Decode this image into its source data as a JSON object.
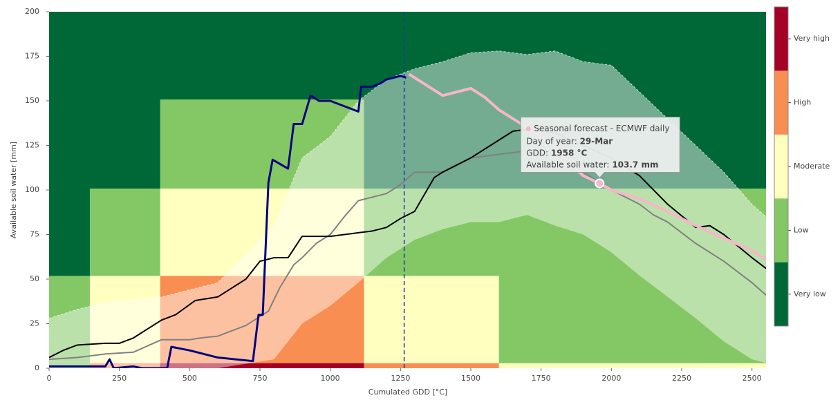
{
  "chart_data": {
    "type": "line",
    "xlabel": "Cumulated GDD [°C]",
    "ylabel": "Available soil water [mm]",
    "xlim": [
      0,
      2550
    ],
    "ylim": [
      0,
      200
    ],
    "xticks": [
      0,
      250,
      500,
      750,
      1000,
      1250,
      1500,
      1750,
      2000,
      2250,
      2500
    ],
    "yticks": [
      0,
      25,
      50,
      75,
      100,
      125,
      150,
      175,
      200
    ],
    "colorbar": {
      "levels": [
        "Very low",
        "Low",
        "Moderate",
        "High",
        "Very high"
      ],
      "colors": [
        "#006837",
        "#84c865",
        "#ffffbf",
        "#f98e52",
        "#a50026"
      ]
    },
    "heatmap": {
      "xbins": [
        0,
        145,
        395,
        1120,
        1600,
        2550
      ],
      "ybins": [
        0,
        3,
        52,
        101,
        151,
        200
      ],
      "z": [
        [
          1,
          3,
          4,
          3,
          2
        ],
        [
          1,
          2,
          3,
          2,
          1
        ],
        [
          0,
          1,
          2,
          1,
          1
        ],
        [
          0,
          0,
          1,
          0,
          0
        ],
        [
          0,
          0,
          0,
          0,
          0
        ]
      ]
    },
    "band": {
      "x": [
        0,
        100,
        200,
        400,
        600,
        800,
        900,
        1000,
        1100,
        1200,
        1300,
        1400,
        1500,
        1600,
        1700,
        1800,
        1900,
        2000,
        2100,
        2200,
        2300,
        2400,
        2500,
        2550
      ],
      "upper": [
        28,
        33,
        37,
        40,
        48,
        80,
        118,
        130,
        150,
        162,
        168,
        172,
        177,
        178,
        176,
        178,
        172,
        170,
        155,
        140,
        125,
        110,
        92,
        85
      ],
      "lower": [
        0,
        0,
        0,
        0,
        0,
        5,
        25,
        35,
        48,
        62,
        72,
        78,
        82,
        82,
        86,
        80,
        75,
        65,
        52,
        40,
        28,
        15,
        5,
        3
      ]
    },
    "vline": 1263,
    "series": [
      {
        "color": "#808080",
        "width": 2,
        "x": [
          0,
          100,
          200,
          300,
          400,
          500,
          540,
          600,
          700,
          780,
          820,
          870,
          900,
          950,
          1000,
          1050,
          1100,
          1200,
          1250,
          1300,
          1400,
          1500,
          1600,
          1700,
          1750,
          1800,
          1900,
          2000,
          2100,
          2150,
          2200,
          2300,
          2400,
          2500,
          2550
        ],
        "values": [
          5,
          6,
          8,
          9,
          16,
          16,
          17,
          18,
          24,
          32,
          45,
          58,
          62,
          70,
          75,
          85,
          94,
          98,
          103,
          110,
          110,
          118,
          120,
          122,
          118,
          120,
          110,
          100,
          92,
          86,
          82,
          70,
          60,
          48,
          41
        ]
      },
      {
        "color": "#000000",
        "width": 2,
        "x": [
          0,
          50,
          100,
          200,
          250,
          300,
          400,
          450,
          520,
          600,
          700,
          750,
          800,
          850,
          900,
          1000,
          1100,
          1150,
          1200,
          1250,
          1300,
          1370,
          1400,
          1500,
          1600,
          1650,
          1700,
          1800,
          1900,
          2000,
          2100,
          2200,
          2300,
          2350,
          2400,
          2500,
          2550
        ],
        "values": [
          6,
          10,
          13,
          14,
          14,
          17,
          27,
          30,
          38,
          40,
          50,
          60,
          62,
          62,
          74,
          74,
          76,
          77,
          79,
          84,
          88,
          107,
          110,
          118,
          128,
          133,
          134,
          132,
          125,
          118,
          108,
          92,
          79,
          80,
          75,
          62,
          56
        ]
      },
      {
        "color": "#000080",
        "width": 3,
        "x": [
          0,
          200,
          215,
          230,
          300,
          330,
          420,
          435,
          500,
          600,
          725,
          745,
          760,
          780,
          795,
          850,
          870,
          900,
          930,
          960,
          1000,
          1100,
          1110,
          1150,
          1180,
          1200,
          1250,
          1270
        ],
        "values": [
          1,
          1,
          5,
          0,
          1,
          0,
          0,
          12,
          10,
          6,
          4,
          30,
          30,
          104,
          117,
          112,
          137,
          137,
          153,
          150,
          150,
          144,
          158,
          158,
          160,
          162,
          164,
          163
        ]
      },
      {
        "name": "Seasonal forecast - ECMWF daily",
        "color": "#f7b6c9",
        "width": 4,
        "x": [
          1280,
          1300,
          1350,
          1400,
          1450,
          1500,
          1550,
          1600,
          1650,
          1700,
          1750,
          1800,
          1850,
          1900,
          1958,
          2000,
          2100,
          2200,
          2300,
          2400,
          2500,
          2550
        ],
        "values": [
          165,
          163,
          158,
          153,
          155,
          157,
          152,
          145,
          140,
          135,
          130,
          124,
          115,
          108,
          103.7,
          100,
          95,
          88,
          80,
          73,
          66,
          61
        ]
      }
    ],
    "tooltip": {
      "day_label": "Day of year:",
      "day": "29-Mar",
      "gdd_label": "GDD:",
      "gdd": "1958 °C",
      "asw_label": "Available soil water:",
      "asw": "103.7 mm"
    }
  }
}
